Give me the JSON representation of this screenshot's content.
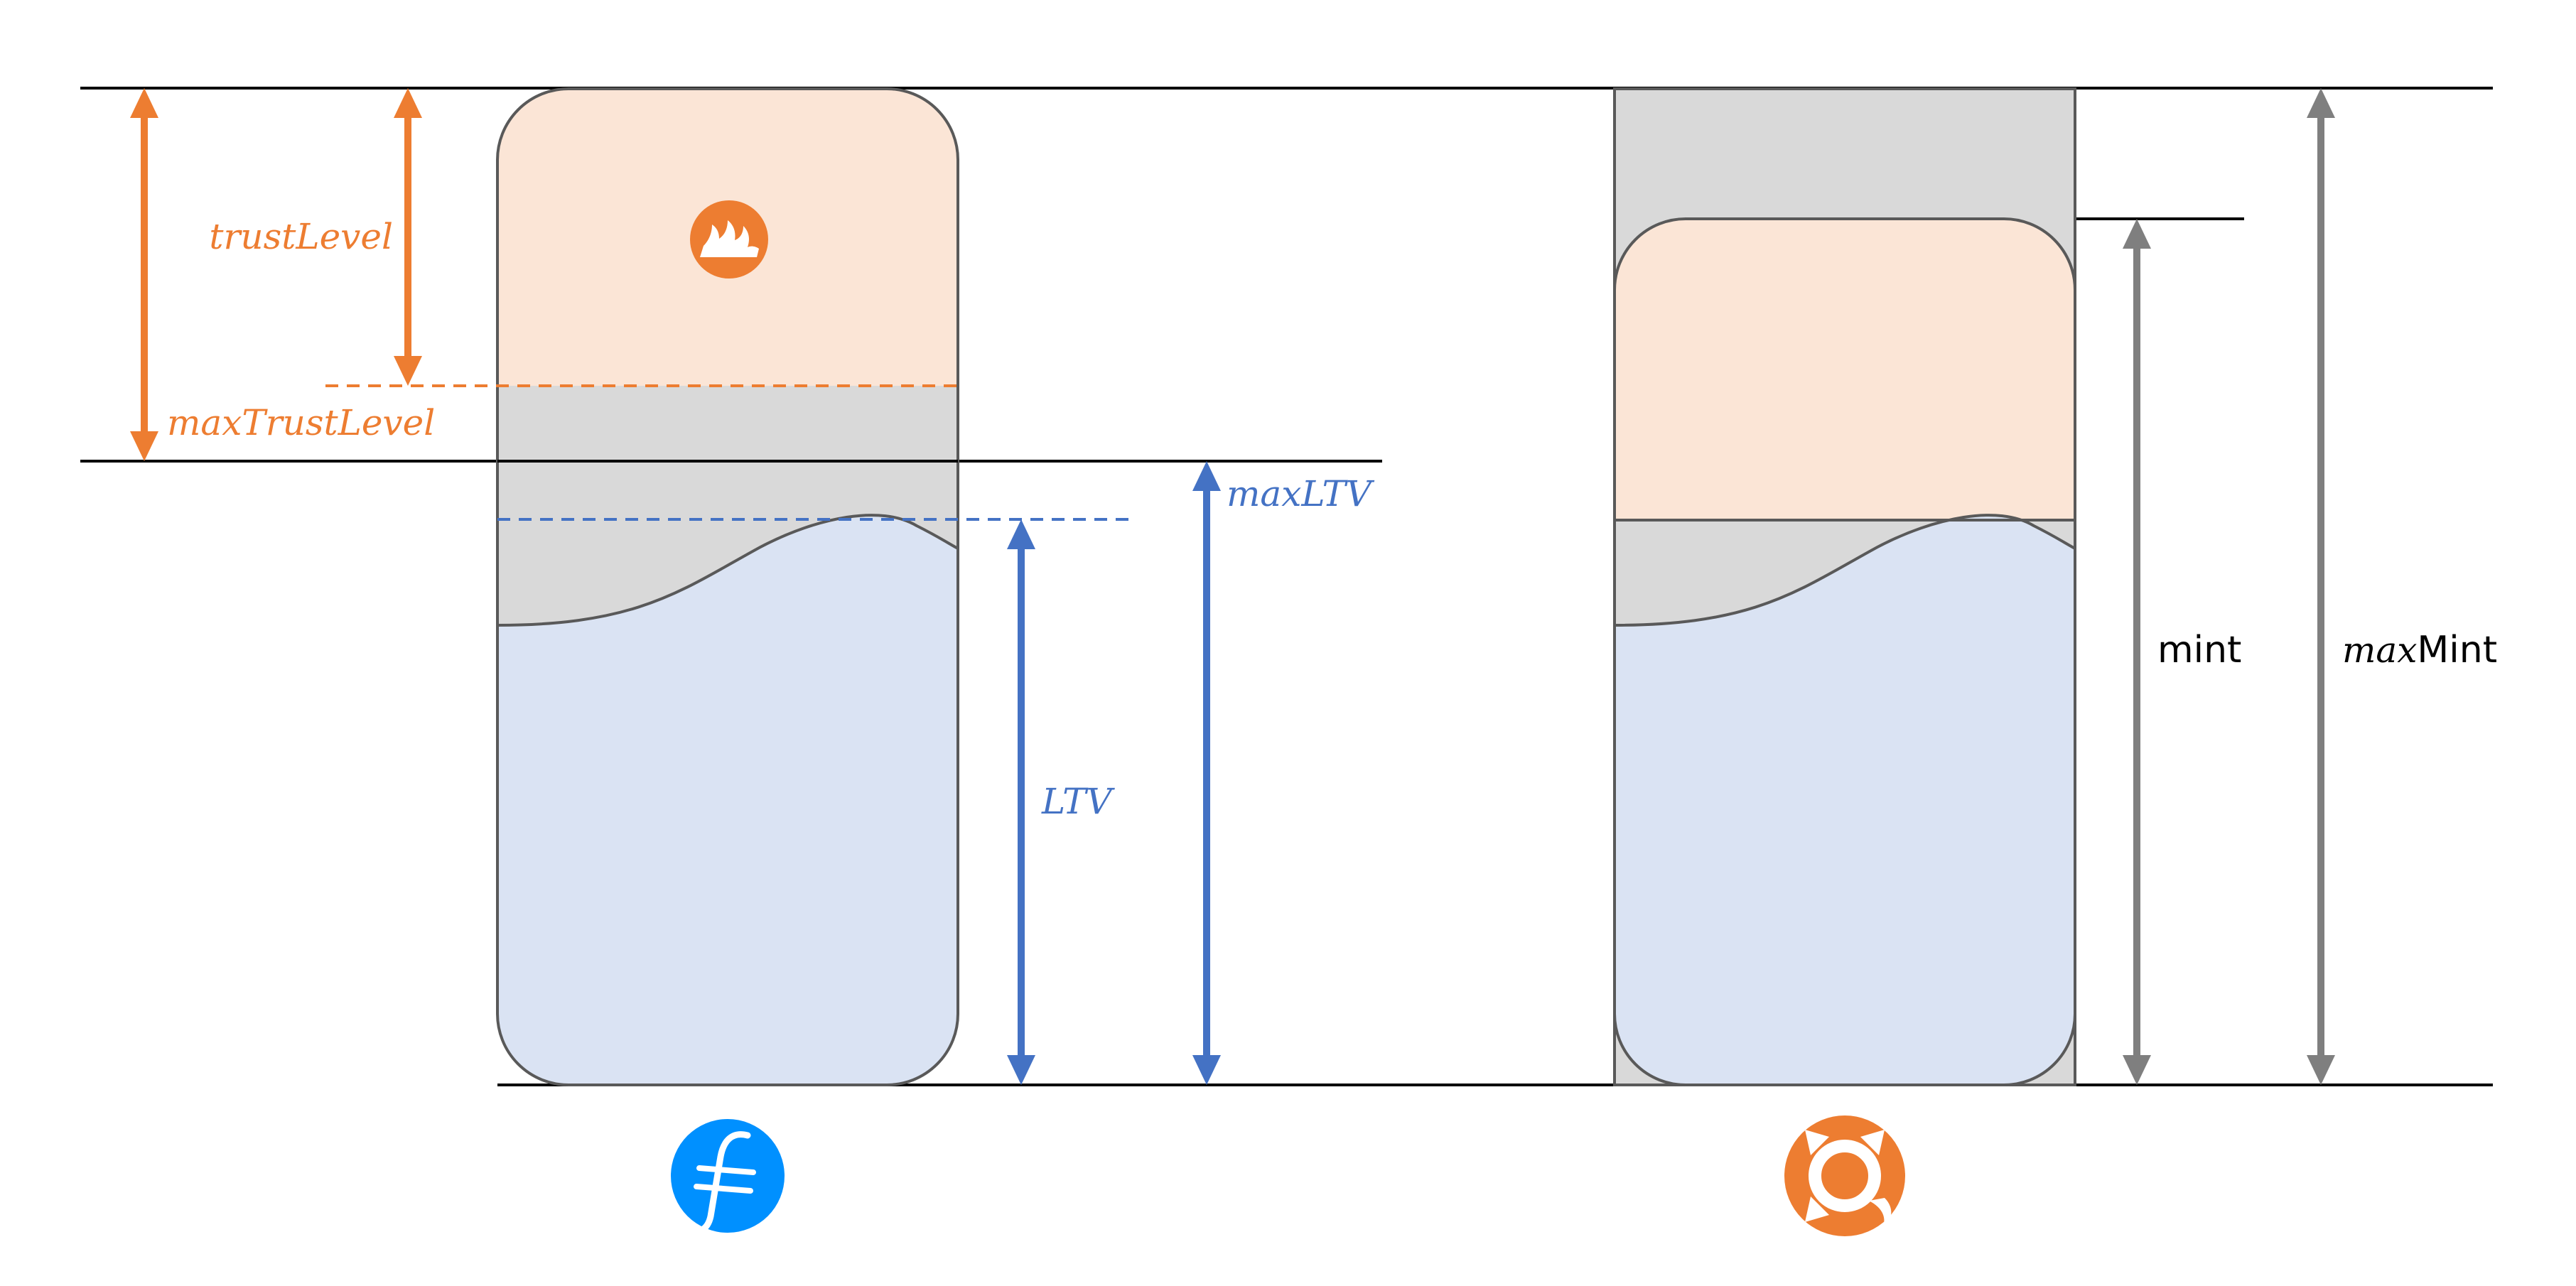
{
  "colors": {
    "orange": "#ED7D31",
    "blue": "#4472C4",
    "gray_arrow": "#7F7F7F",
    "peach_fill": "#FBE5D6",
    "light_blue_fill": "#DAE3F3",
    "gray_fill": "#D9D9D9",
    "outline": "#595959",
    "line": "#000000",
    "filecoin_blue": "#0090FF"
  },
  "labels": {
    "trust_level": "trustLevel",
    "max_trust_level": "maxTrustLevel",
    "max_ltv": "maxLTV",
    "ltv": "LTV",
    "mint": "mint",
    "max_mint_prefix": "max",
    "max_mint_suffix": "Mint"
  },
  "icons": {
    "flame": "flame-icon",
    "filecoin": "filecoin-logo-icon",
    "sync": "sync-logo-icon"
  }
}
